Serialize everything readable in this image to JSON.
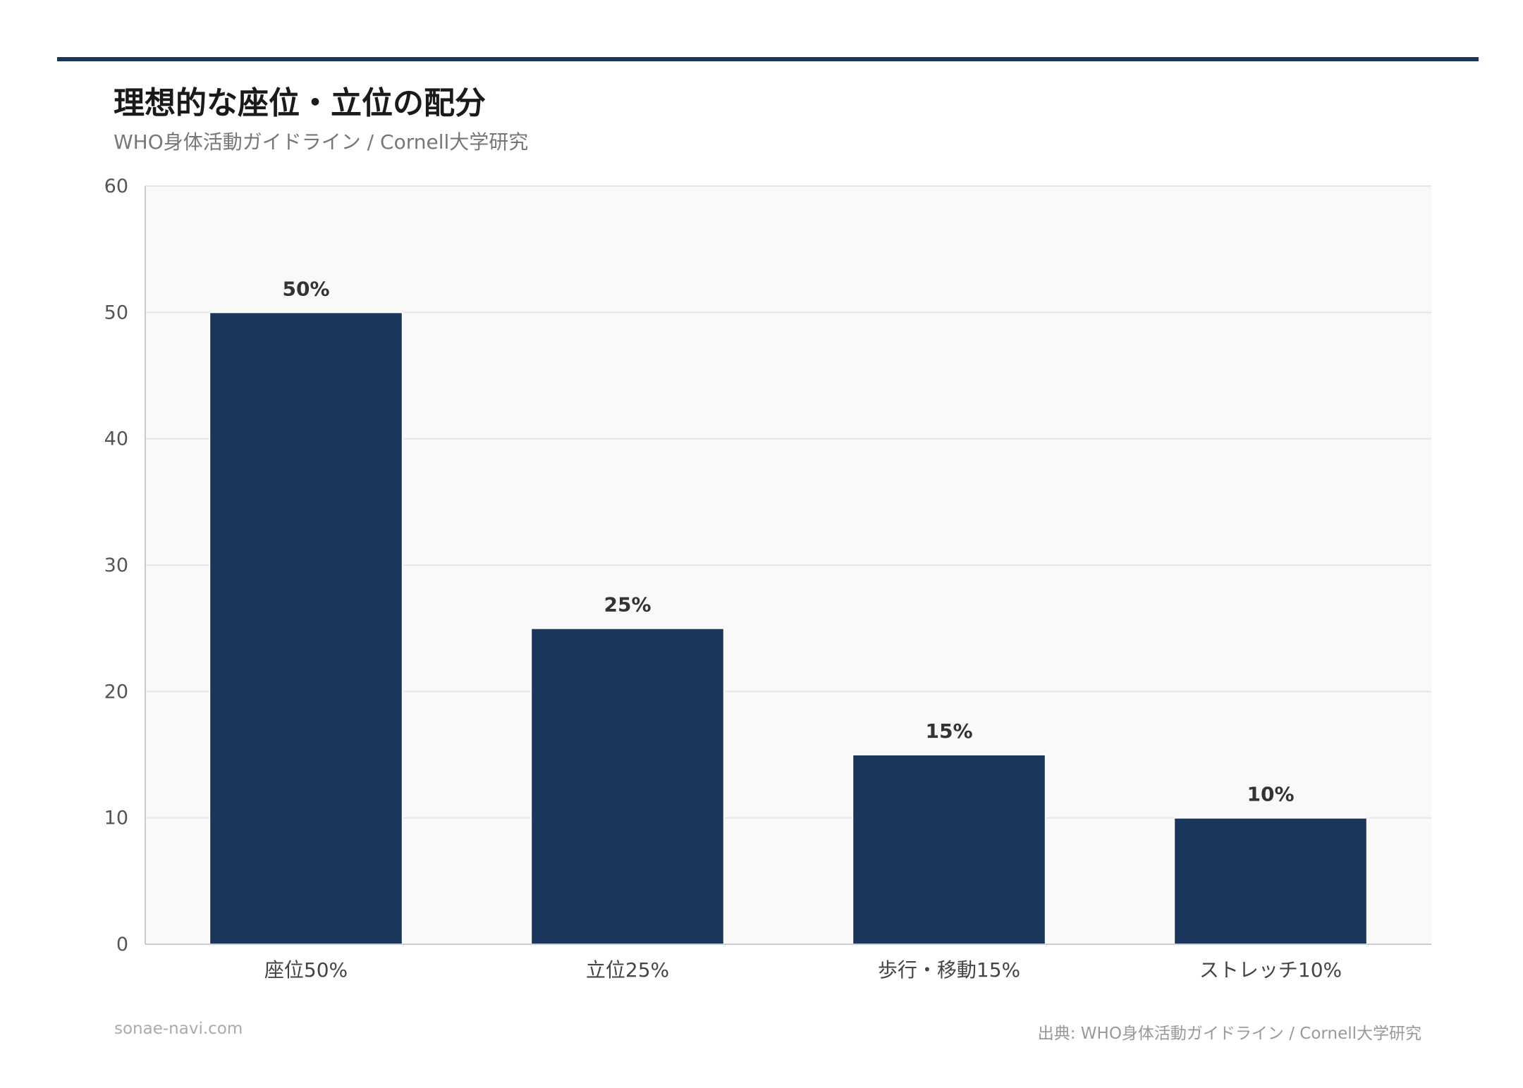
{
  "header": {
    "title": "理想的な座位・立位の配分",
    "subtitle": "WHO身体活動ガイドライン / Cornell大学研究"
  },
  "footer": {
    "site": "sonae-navi.com",
    "source": "出典: WHO身体活動ガイドライン / Cornell大学研究"
  },
  "colors": {
    "bar": "#1b365d",
    "accent_rule": "#1b365d",
    "plot_bg": "#f9f9f9",
    "grid": "#e6e6e6"
  },
  "chart_data": {
    "type": "bar",
    "title": "理想的な座位・立位の配分",
    "subtitle": "WHO身体活動ガイドライン / Cornell大学研究",
    "categories": [
      "座位50%",
      "立位25%",
      "歩行・移動15%",
      "ストレッチ10%"
    ],
    "values": [
      50,
      25,
      15,
      10
    ],
    "data_labels": [
      "50%",
      "25%",
      "15%",
      "10%"
    ],
    "xlabel": "",
    "ylabel": "",
    "ylim": [
      0,
      60
    ],
    "yticks": [
      0,
      10,
      20,
      30,
      40,
      50,
      60
    ],
    "grid": true,
    "legend": "none"
  }
}
